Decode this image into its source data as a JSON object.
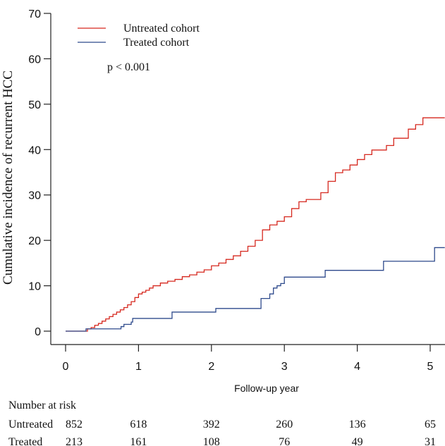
{
  "chart_data": {
    "type": "line",
    "title": "",
    "xlabel": "Follow-up year",
    "ylabel": "Cumulative incidence of recurrent HCC",
    "xlim": [
      0,
      5.2
    ],
    "ylim": [
      0,
      70
    ],
    "x_ticks": [
      "0",
      "1",
      "2",
      "3",
      "4",
      "5"
    ],
    "y_ticks": [
      "0",
      "10",
      "20",
      "30",
      "40",
      "50",
      "60",
      "70"
    ],
    "legend_position": "top-left",
    "annotation": "p < 0.001",
    "series": [
      {
        "name": "Untreated cohort",
        "color": "#d6281f",
        "step": true,
        "points": [
          [
            0,
            0
          ],
          [
            0.28,
            0
          ],
          [
            0.3,
            0.5
          ],
          [
            0.35,
            0.8
          ],
          [
            0.4,
            1.3
          ],
          [
            0.45,
            1.7
          ],
          [
            0.5,
            2.2
          ],
          [
            0.55,
            2.7
          ],
          [
            0.6,
            3.2
          ],
          [
            0.65,
            3.7
          ],
          [
            0.7,
            4.2
          ],
          [
            0.75,
            4.7
          ],
          [
            0.8,
            5.2
          ],
          [
            0.85,
            5.8
          ],
          [
            0.9,
            6.5
          ],
          [
            0.95,
            7.4
          ],
          [
            1.0,
            8.2
          ],
          [
            1.05,
            8.6
          ],
          [
            1.1,
            9.0
          ],
          [
            1.15,
            9.5
          ],
          [
            1.2,
            10.0
          ],
          [
            1.3,
            10.6
          ],
          [
            1.4,
            11.0
          ],
          [
            1.5,
            11.4
          ],
          [
            1.6,
            12.0
          ],
          [
            1.7,
            12.4
          ],
          [
            1.8,
            13.0
          ],
          [
            1.9,
            13.5
          ],
          [
            2.0,
            14.4
          ],
          [
            2.1,
            15.0
          ],
          [
            2.2,
            15.8
          ],
          [
            2.3,
            16.6
          ],
          [
            2.4,
            17.6
          ],
          [
            2.5,
            18.7
          ],
          [
            2.6,
            20.0
          ],
          [
            2.7,
            22.3
          ],
          [
            2.8,
            23.4
          ],
          [
            2.9,
            24.2
          ],
          [
            3.0,
            25.2
          ],
          [
            3.1,
            27.0
          ],
          [
            3.2,
            28.5
          ],
          [
            3.3,
            29.0
          ],
          [
            3.5,
            30.5
          ],
          [
            3.6,
            33.0
          ],
          [
            3.7,
            34.9
          ],
          [
            3.8,
            35.5
          ],
          [
            3.9,
            36.6
          ],
          [
            4.0,
            37.8
          ],
          [
            4.1,
            38.9
          ],
          [
            4.2,
            39.9
          ],
          [
            4.4,
            40.9
          ],
          [
            4.5,
            42.5
          ],
          [
            4.7,
            44.5
          ],
          [
            4.8,
            45.5
          ],
          [
            4.9,
            47.0
          ],
          [
            5.2,
            47.0
          ]
        ]
      },
      {
        "name": "Treated cohort",
        "color": "#2e4a8c",
        "step": true,
        "points": [
          [
            0,
            0
          ],
          [
            0.25,
            0
          ],
          [
            0.28,
            0.5
          ],
          [
            0.75,
            0.5
          ],
          [
            0.76,
            1.0
          ],
          [
            0.8,
            1.5
          ],
          [
            0.9,
            2.0
          ],
          [
            0.92,
            2.8
          ],
          [
            1.45,
            2.8
          ],
          [
            1.46,
            4.2
          ],
          [
            2.05,
            4.2
          ],
          [
            2.06,
            5.0
          ],
          [
            2.67,
            5.0
          ],
          [
            2.68,
            7.2
          ],
          [
            2.8,
            8.2
          ],
          [
            2.85,
            9.5
          ],
          [
            2.9,
            10.0
          ],
          [
            2.95,
            10.5
          ],
          [
            3.0,
            11.9
          ],
          [
            3.55,
            11.9
          ],
          [
            3.56,
            13.4
          ],
          [
            4.35,
            13.4
          ],
          [
            4.36,
            15.4
          ],
          [
            5.05,
            15.4
          ],
          [
            5.06,
            18.4
          ],
          [
            5.2,
            18.4
          ]
        ]
      }
    ]
  },
  "risk_table": {
    "header": "Number at risk",
    "x": [
      0,
      1,
      2,
      3,
      4,
      5
    ],
    "rows": [
      {
        "label": "Untreated",
        "values": [
          "852",
          "618",
          "392",
          "260",
          "136",
          "65"
        ]
      },
      {
        "label": "Treated",
        "values": [
          "213",
          "161",
          "108",
          "76",
          "49",
          "31"
        ]
      }
    ]
  }
}
